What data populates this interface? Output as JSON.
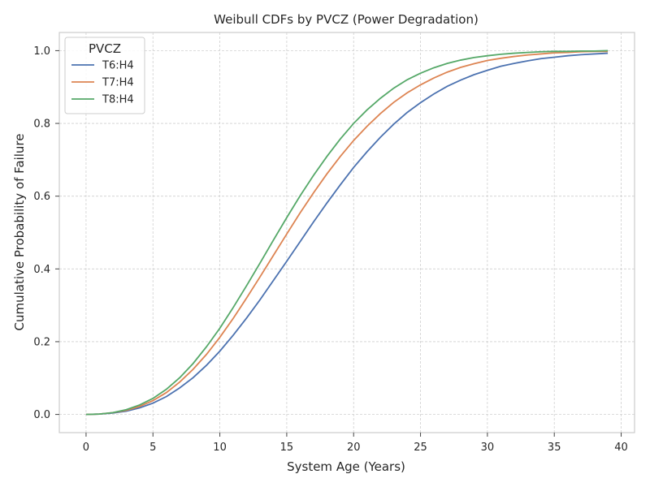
{
  "chart_data": {
    "type": "line",
    "title": "Weibull CDFs by PVCZ (Power Degradation)",
    "xlabel": "System Age (Years)",
    "ylabel": "Cumulative Probability of Failure",
    "xlim": [
      -2,
      41
    ],
    "ylim": [
      -0.05,
      1.05
    ],
    "xticks": [
      0,
      5,
      10,
      15,
      20,
      25,
      30,
      35,
      40
    ],
    "yticks": [
      0.0,
      0.2,
      0.4,
      0.6,
      0.8,
      1.0
    ],
    "grid": true,
    "legend": {
      "title": "PVCZ",
      "position": "top-left"
    },
    "x": [
      0,
      1,
      2,
      3,
      4,
      5,
      6,
      7,
      8,
      9,
      10,
      11,
      12,
      13,
      14,
      15,
      16,
      17,
      18,
      19,
      20,
      21,
      22,
      23,
      24,
      25,
      26,
      27,
      28,
      29,
      30,
      31,
      32,
      33,
      34,
      35,
      36,
      37,
      38,
      39
    ],
    "series": [
      {
        "name": "T6:H4",
        "color": "#4c72b0",
        "values": [
          0.0,
          0.001,
          0.004,
          0.009,
          0.018,
          0.031,
          0.049,
          0.073,
          0.101,
          0.135,
          0.174,
          0.218,
          0.265,
          0.315,
          0.368,
          0.421,
          0.475,
          0.529,
          0.581,
          0.631,
          0.679,
          0.722,
          0.762,
          0.798,
          0.83,
          0.857,
          0.881,
          0.902,
          0.919,
          0.934,
          0.946,
          0.957,
          0.965,
          0.972,
          0.978,
          0.982,
          0.986,
          0.989,
          0.991,
          0.993
        ]
      },
      {
        "name": "T7:H4",
        "color": "#dd8452",
        "values": [
          0.0,
          0.001,
          0.005,
          0.011,
          0.022,
          0.038,
          0.06,
          0.089,
          0.124,
          0.165,
          0.212,
          0.264,
          0.32,
          0.378,
          0.437,
          0.496,
          0.554,
          0.609,
          0.661,
          0.709,
          0.753,
          0.792,
          0.827,
          0.858,
          0.884,
          0.906,
          0.925,
          0.941,
          0.954,
          0.964,
          0.973,
          0.979,
          0.984,
          0.988,
          0.991,
          0.994,
          0.995,
          0.997,
          0.998,
          0.998
        ]
      },
      {
        "name": "T8:H4",
        "color": "#55a868",
        "values": [
          0.0,
          0.001,
          0.005,
          0.013,
          0.026,
          0.044,
          0.069,
          0.101,
          0.14,
          0.186,
          0.237,
          0.294,
          0.354,
          0.416,
          0.479,
          0.541,
          0.601,
          0.657,
          0.709,
          0.757,
          0.8,
          0.837,
          0.869,
          0.897,
          0.92,
          0.938,
          0.953,
          0.965,
          0.974,
          0.981,
          0.986,
          0.99,
          0.993,
          0.995,
          0.997,
          0.998,
          0.998,
          0.999,
          0.999,
          1.0
        ]
      }
    ]
  }
}
